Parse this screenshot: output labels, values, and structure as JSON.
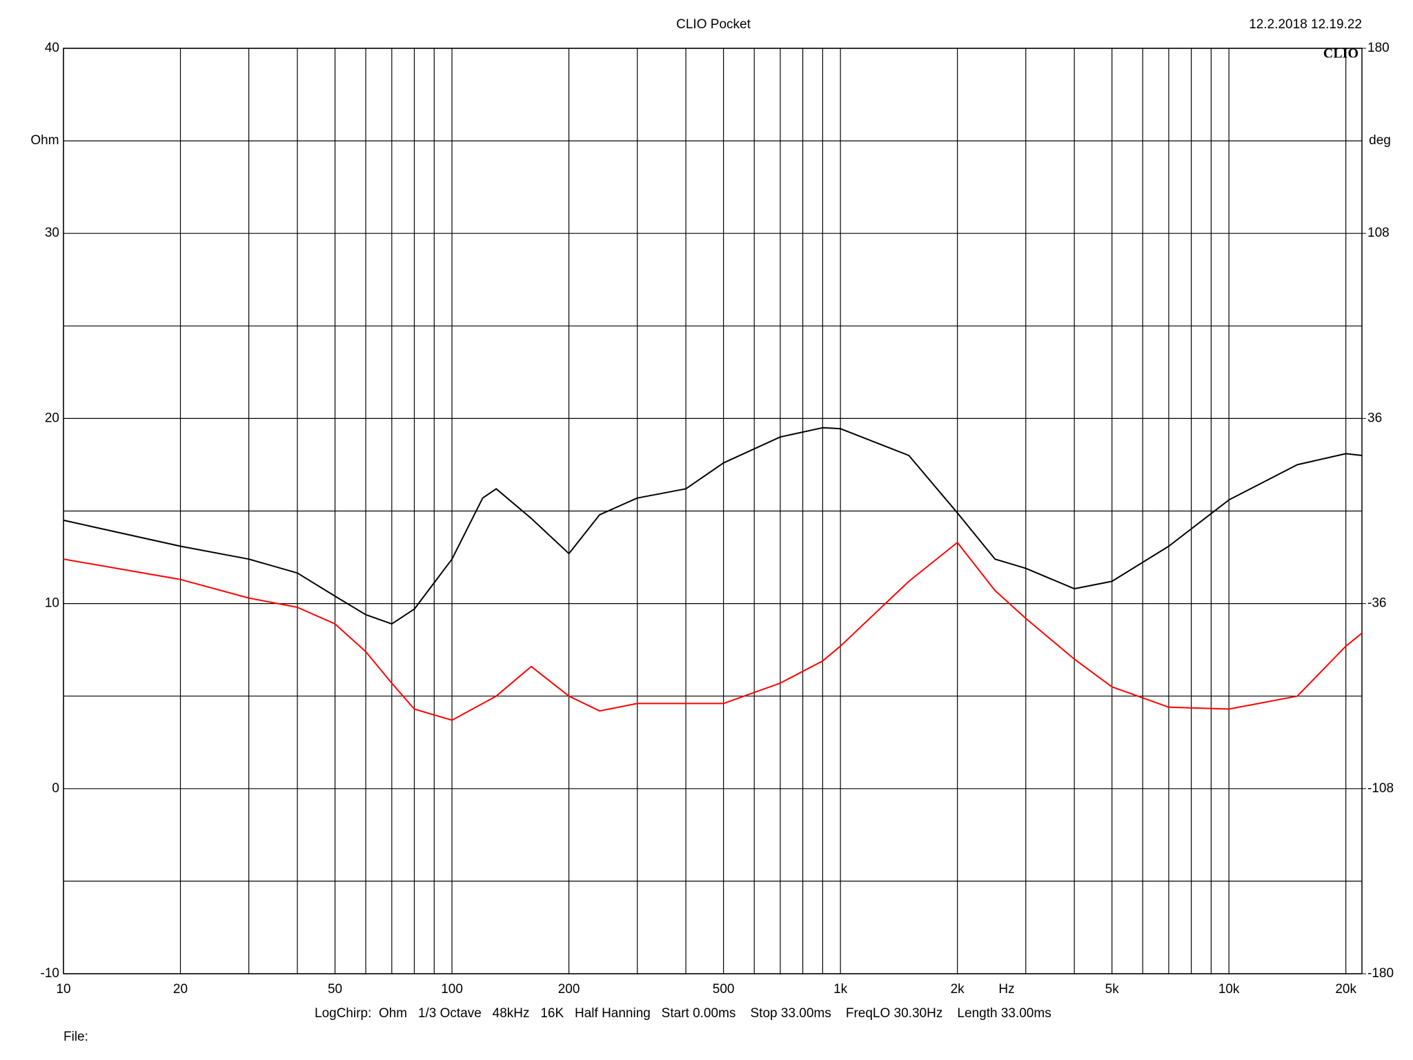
{
  "chart_data": {
    "type": "line",
    "title": "CLIO Pocket",
    "timestamp": "12.2.2018 12.19.22",
    "logo": "CLIO",
    "xlabel": "Hz",
    "ylabel": "Ohm",
    "y2label": "deg",
    "footer": "LogChirp:  Ohm   1/3 Octave   48kHz   16K   Half Hanning   Start 0.00ms    Stop 33.00ms    FreqLO 30.30Hz    Length 33.00ms",
    "file_label": "File:",
    "xscale": "log",
    "grid": true,
    "xlim": [
      10,
      22000
    ],
    "xticks": [
      10,
      20,
      50,
      100,
      200,
      500,
      {
        "value": 1000,
        "label": "1k"
      },
      {
        "value": 2000,
        "label": "2k"
      },
      {
        "value": 5000,
        "label": "5k"
      },
      {
        "value": 10000,
        "label": "10k"
      },
      {
        "value": 20000,
        "label": "20k"
      }
    ],
    "xminor_ticks": [
      30,
      40,
      60,
      70,
      80,
      90,
      300,
      400,
      600,
      700,
      800,
      900,
      3000,
      4000,
      6000,
      7000,
      8000,
      9000
    ],
    "ylim": [
      -10,
      40
    ],
    "yticks": [
      -10,
      0,
      10,
      20,
      30,
      40
    ],
    "yminor_ticks": [
      -5,
      5,
      15,
      25,
      35
    ],
    "y2lim": [
      -180,
      180
    ],
    "y2ticks": [
      -180,
      -108,
      -36,
      36,
      108,
      180
    ],
    "x": [
      10,
      20,
      30,
      40,
      50,
      60,
      70,
      80,
      100,
      120,
      130,
      160,
      200,
      240,
      300,
      400,
      500,
      700,
      900,
      1000,
      1500,
      2000,
      2500,
      3000,
      4000,
      5000,
      7000,
      10000,
      15000,
      20000,
      22000
    ],
    "series": [
      {
        "color": "#000000",
        "values": [
          14.5,
          13.1,
          12.4,
          11.65,
          10.4,
          9.4,
          8.9,
          9.7,
          12.4,
          15.7,
          16.2,
          14.6,
          12.7,
          14.8,
          15.7,
          16.2,
          17.6,
          19.0,
          19.5,
          19.45,
          18.0,
          14.9,
          12.4,
          11.9,
          10.8,
          11.2,
          13.1,
          15.6,
          17.5,
          18.1,
          18.0
        ]
      },
      {
        "color": "#ff0000",
        "values": [
          12.4,
          11.3,
          10.3,
          9.8,
          8.9,
          7.4,
          5.7,
          4.3,
          3.7,
          4.6,
          5.0,
          6.6,
          5.0,
          4.2,
          4.6,
          4.6,
          4.6,
          5.7,
          6.9,
          7.7,
          11.2,
          13.3,
          10.7,
          9.2,
          7.0,
          5.5,
          4.4,
          4.3,
          5.0,
          7.7,
          8.4
        ]
      }
    ]
  }
}
